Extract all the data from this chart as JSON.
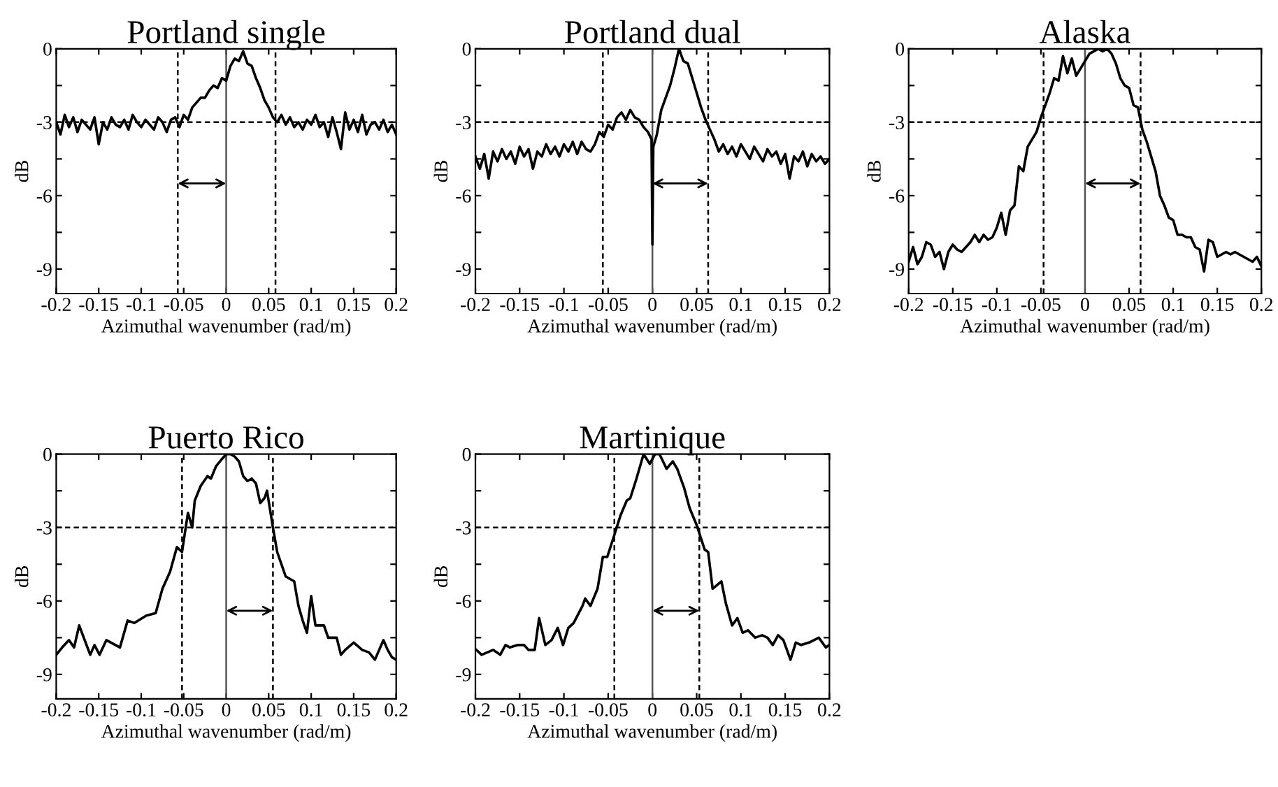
{
  "chart_data": [
    {
      "type": "line",
      "title": "Portland single",
      "xlabel": "Azimuthal wavenumber (rad/m)",
      "ylabel": "dB",
      "color": "#000000",
      "grid": false,
      "legend": false,
      "x": [
        -0.2,
        -0.195,
        -0.19,
        -0.185,
        -0.18,
        -0.175,
        -0.17,
        -0.165,
        -0.16,
        -0.155,
        -0.15,
        -0.145,
        -0.14,
        -0.135,
        -0.13,
        -0.125,
        -0.12,
        -0.115,
        -0.11,
        -0.105,
        -0.1,
        -0.095,
        -0.09,
        -0.085,
        -0.08,
        -0.075,
        -0.07,
        -0.065,
        -0.06,
        -0.055,
        -0.05,
        -0.045,
        -0.04,
        -0.035,
        -0.03,
        -0.025,
        -0.02,
        -0.015,
        -0.01,
        -0.005,
        0,
        0.005,
        0.01,
        0.015,
        0.02,
        0.025,
        0.03,
        0.035,
        0.04,
        0.045,
        0.05,
        0.055,
        0.06,
        0.065,
        0.07,
        0.075,
        0.08,
        0.085,
        0.09,
        0.095,
        0.1,
        0.105,
        0.11,
        0.115,
        0.12,
        0.125,
        0.13,
        0.135,
        0.14,
        0.145,
        0.15,
        0.155,
        0.16,
        0.165,
        0.17,
        0.175,
        0.18,
        0.185,
        0.19,
        0.195,
        0.2
      ],
      "values": [
        -3.0,
        -3.5,
        -2.7,
        -3.2,
        -2.8,
        -3.4,
        -2.9,
        -3.1,
        -3.3,
        -2.8,
        -3.9,
        -3.0,
        -3.3,
        -2.8,
        -3.1,
        -3.2,
        -2.9,
        -3.3,
        -2.7,
        -3.0,
        -3.2,
        -2.9,
        -3.1,
        -3.3,
        -2.8,
        -3.0,
        -3.4,
        -2.9,
        -2.8,
        -3.2,
        -2.7,
        -2.9,
        -2.4,
        -2.2,
        -2.0,
        -2.0,
        -1.7,
        -1.5,
        -1.6,
        -1.2,
        -1.3,
        -0.7,
        -0.4,
        -0.5,
        -0.1,
        -0.6,
        -0.7,
        -1.2,
        -1.6,
        -2.1,
        -2.4,
        -2.8,
        -3.0,
        -2.7,
        -3.1,
        -2.8,
        -3.2,
        -3.0,
        -3.3,
        -2.9,
        -3.1,
        -2.7,
        -3.2,
        -3.0,
        -3.6,
        -2.8,
        -3.4,
        -4.1,
        -2.6,
        -3.3,
        -2.9,
        -3.4,
        -2.7,
        -3.5,
        -3.1,
        -3.0,
        -3.3,
        -2.9,
        -3.4,
        -3.1,
        -3.5
      ],
      "xlim": [
        -0.2,
        0.2
      ],
      "xticks": [
        -0.2,
        -0.15,
        -0.1,
        -0.05,
        0,
        0.05,
        0.1,
        0.15,
        0.2
      ],
      "ylim": [
        -10,
        0
      ],
      "yticks": [
        0,
        {
          "value": -1.5,
          "label": null
        },
        -3,
        {
          "value": -4.5,
          "label": null
        },
        -6,
        {
          "value": -7.5,
          "label": null
        },
        -9
      ],
      "ref_lines": [
        {
          "axis": "x",
          "value": 0,
          "line_style": "solid",
          "color": "#555555"
        },
        {
          "axis": "x",
          "value": -0.057,
          "line_style": "dashed",
          "color": "#000000"
        },
        {
          "axis": "x",
          "value": 0.058,
          "line_style": "dashed",
          "color": "#000000"
        },
        {
          "axis": "y",
          "value": -3,
          "line_style": "dashed",
          "color": "#000000"
        }
      ]
    },
    {
      "type": "line",
      "title": "Portland dual",
      "xlabel": "Azimuthal wavenumber (rad/m)",
      "ylabel": "dB",
      "color": "#000000",
      "grid": false,
      "legend": false,
      "x": [
        -0.2,
        -0.195,
        -0.19,
        -0.185,
        -0.18,
        -0.175,
        -0.17,
        -0.165,
        -0.16,
        -0.155,
        -0.15,
        -0.145,
        -0.14,
        -0.135,
        -0.13,
        -0.125,
        -0.12,
        -0.115,
        -0.11,
        -0.105,
        -0.1,
        -0.095,
        -0.09,
        -0.085,
        -0.08,
        -0.075,
        -0.07,
        -0.065,
        -0.06,
        -0.055,
        -0.05,
        -0.045,
        -0.04,
        -0.035,
        -0.03,
        -0.025,
        -0.02,
        -0.015,
        -0.01,
        -0.005,
        -0.001,
        0,
        0.001,
        0.005,
        0.01,
        0.015,
        0.02,
        0.025,
        0.03,
        0.035,
        0.04,
        0.045,
        0.05,
        0.055,
        0.06,
        0.065,
        0.07,
        0.075,
        0.08,
        0.085,
        0.09,
        0.095,
        0.1,
        0.105,
        0.11,
        0.115,
        0.12,
        0.125,
        0.13,
        0.135,
        0.14,
        0.145,
        0.15,
        0.155,
        0.16,
        0.165,
        0.17,
        0.175,
        0.18,
        0.185,
        0.19,
        0.195,
        0.2
      ],
      "values": [
        -4.4,
        -4.9,
        -4.3,
        -5.3,
        -4.2,
        -4.6,
        -4.1,
        -4.5,
        -4.2,
        -4.7,
        -4.0,
        -4.4,
        -4.1,
        -4.9,
        -4.2,
        -4.4,
        -3.9,
        -4.3,
        -4.0,
        -4.4,
        -3.9,
        -4.2,
        -3.8,
        -4.3,
        -3.8,
        -4.1,
        -4.2,
        -3.9,
        -3.4,
        -3.6,
        -3.1,
        -3.3,
        -2.8,
        -2.6,
        -2.9,
        -2.5,
        -2.8,
        -2.9,
        -3.2,
        -3.4,
        -3.7,
        -8.0,
        -4.0,
        -3.5,
        -2.5,
        -2.0,
        -1.5,
        -0.8,
        0.0,
        -0.5,
        -0.6,
        -1.2,
        -1.8,
        -2.4,
        -2.9,
        -3.3,
        -3.7,
        -4.2,
        -3.9,
        -4.3,
        -4.0,
        -4.4,
        -3.9,
        -4.2,
        -4.5,
        -4.0,
        -4.3,
        -4.6,
        -4.1,
        -4.4,
        -4.2,
        -4.7,
        -4.3,
        -5.3,
        -4.4,
        -4.6,
        -4.2,
        -4.8,
        -4.3,
        -4.6,
        -4.4,
        -4.7,
        -4.5
      ],
      "xlim": [
        -0.2,
        0.2
      ],
      "xticks": [
        -0.2,
        -0.15,
        -0.1,
        -0.05,
        0,
        0.05,
        0.1,
        0.15,
        0.2
      ],
      "ylim": [
        -10,
        0
      ],
      "yticks": [
        0,
        {
          "value": -1.5,
          "label": null
        },
        -3,
        {
          "value": -4.5,
          "label": null
        },
        -6,
        {
          "value": -7.5,
          "label": null
        },
        -9
      ],
      "ref_lines": [
        {
          "axis": "x",
          "value": 0,
          "line_style": "solid",
          "color": "#555555"
        },
        {
          "axis": "x",
          "value": 0.063,
          "line_style": "dashed",
          "color": "#000000"
        },
        {
          "axis": "x",
          "value": -0.056,
          "line_style": "dashed",
          "color": "#000000"
        },
        {
          "axis": "y",
          "value": -3,
          "line_style": "dashed",
          "color": "#000000"
        }
      ]
    },
    {
      "type": "line",
      "title": "Alaska",
      "xlabel": "Azimuthal wavenumber (rad/m)",
      "ylabel": "dB",
      "color": "#000000",
      "grid": false,
      "legend": false,
      "x": [
        -0.2,
        -0.195,
        -0.19,
        -0.185,
        -0.18,
        -0.175,
        -0.17,
        -0.165,
        -0.16,
        -0.155,
        -0.15,
        -0.145,
        -0.14,
        -0.135,
        -0.13,
        -0.125,
        -0.12,
        -0.115,
        -0.11,
        -0.105,
        -0.1,
        -0.095,
        -0.09,
        -0.085,
        -0.08,
        -0.075,
        -0.07,
        -0.065,
        -0.06,
        -0.055,
        -0.05,
        -0.045,
        -0.04,
        -0.035,
        -0.03,
        -0.025,
        -0.02,
        -0.015,
        -0.01,
        -0.005,
        0,
        0.005,
        0.01,
        0.015,
        0.02,
        0.025,
        0.03,
        0.035,
        0.04,
        0.045,
        0.05,
        0.055,
        0.06,
        0.065,
        0.07,
        0.075,
        0.08,
        0.085,
        0.09,
        0.095,
        0.1,
        0.105,
        0.11,
        0.115,
        0.12,
        0.125,
        0.13,
        0.135,
        0.14,
        0.145,
        0.15,
        0.155,
        0.16,
        0.165,
        0.17,
        0.175,
        0.18,
        0.185,
        0.19,
        0.195,
        0.2
      ],
      "values": [
        -8.7,
        -8.1,
        -8.8,
        -8.5,
        -7.9,
        -8.0,
        -8.5,
        -8.3,
        -9.0,
        -8.3,
        -8.0,
        -8.2,
        -8.3,
        -8.1,
        -7.9,
        -7.6,
        -7.9,
        -7.6,
        -7.8,
        -7.7,
        -7.3,
        -6.7,
        -7.6,
        -6.6,
        -6.4,
        -4.8,
        -5.0,
        -4.0,
        -3.7,
        -3.4,
        -2.8,
        -2.3,
        -1.8,
        -1.2,
        -1.3,
        -0.3,
        -1.0,
        -0.4,
        -1.1,
        -0.8,
        -0.5,
        -0.2,
        -0.1,
        0.0,
        -0.1,
        0.0,
        -0.2,
        -0.6,
        -1.2,
        -1.5,
        -1.6,
        -2.3,
        -2.4,
        -3.3,
        -3.8,
        -4.4,
        -5.0,
        -6.0,
        -6.4,
        -6.9,
        -7.0,
        -7.6,
        -7.6,
        -7.7,
        -7.7,
        -8.1,
        -8.2,
        -9.1,
        -7.8,
        -7.9,
        -8.5,
        -8.4,
        -8.3,
        -8.4,
        -8.3,
        -8.4,
        -8.5,
        -8.6,
        -8.7,
        -8.5,
        -8.9
      ],
      "xlim": [
        -0.2,
        0.2
      ],
      "xticks": [
        -0.2,
        -0.15,
        -0.1,
        -0.05,
        0,
        0.05,
        0.1,
        0.15,
        0.2
      ],
      "ylim": [
        -10,
        0
      ],
      "yticks": [
        0,
        {
          "value": -1.5,
          "label": null
        },
        -3,
        {
          "value": -4.5,
          "label": null
        },
        -6,
        {
          "value": -7.5,
          "label": null
        },
        -9
      ],
      "ref_lines": [
        {
          "axis": "x",
          "value": 0,
          "line_style": "solid",
          "color": "#555555"
        },
        {
          "axis": "x",
          "value": 0.063,
          "line_style": "dashed",
          "color": "#000000"
        },
        {
          "axis": "x",
          "value": -0.047,
          "line_style": "dashed",
          "color": "#000000"
        },
        {
          "axis": "y",
          "value": -3,
          "line_style": "dashed",
          "color": "#000000"
        }
      ]
    },
    {
      "type": "line",
      "title": "Puerto Rico",
      "xlabel": "Azimuthal wavenumber (rad/m)",
      "ylabel": "dB",
      "color": "#000000",
      "grid": false,
      "legend": false,
      "x": [
        -0.2,
        -0.193,
        -0.185,
        -0.179,
        -0.173,
        -0.16,
        -0.155,
        -0.149,
        -0.141,
        -0.125,
        -0.116,
        -0.108,
        -0.094,
        -0.083,
        -0.075,
        -0.066,
        -0.058,
        -0.052,
        -0.045,
        -0.04,
        -0.037,
        -0.03,
        -0.022,
        -0.018,
        -0.012,
        -0.005,
        0,
        0.005,
        0.01,
        0.015,
        0.02,
        0.025,
        0.03,
        0.035,
        0.04,
        0.045,
        0.048,
        0.055,
        0.06,
        0.07,
        0.08,
        0.085,
        0.09,
        0.095,
        0.1,
        0.105,
        0.115,
        0.12,
        0.13,
        0.135,
        0.14,
        0.15,
        0.16,
        0.168,
        0.175,
        0.185,
        0.19,
        0.195,
        0.2
      ],
      "values": [
        -8.2,
        -7.9,
        -7.6,
        -7.9,
        -7.0,
        -8.2,
        -7.8,
        -8.2,
        -7.6,
        -7.9,
        -6.8,
        -6.9,
        -6.6,
        -6.5,
        -5.5,
        -4.8,
        -3.8,
        -4.0,
        -2.4,
        -3.0,
        -1.9,
        -1.3,
        -0.9,
        -1.0,
        -0.5,
        -0.2,
        0.0,
        0.0,
        -0.1,
        -0.3,
        -0.9,
        -1.1,
        -1.0,
        -1.2,
        -2.0,
        -1.8,
        -1.5,
        -3.0,
        -4.0,
        -5.0,
        -5.2,
        -6.2,
        -6.8,
        -7.3,
        -5.8,
        -7.0,
        -7.0,
        -7.5,
        -7.5,
        -8.2,
        -8.0,
        -7.7,
        -8.0,
        -8.1,
        -8.4,
        -7.6,
        -8.0,
        -8.3,
        -8.4
      ],
      "xlim": [
        -0.2,
        0.2
      ],
      "xticks": [
        -0.2,
        -0.15,
        -0.1,
        -0.05,
        0,
        0.05,
        0.1,
        0.15,
        0.2
      ],
      "ylim": [
        -10,
        0
      ],
      "yticks": [
        0,
        {
          "value": -1.5,
          "label": null
        },
        -3,
        {
          "value": -4.5,
          "label": null
        },
        -6,
        {
          "value": -7.5,
          "label": null
        },
        -9
      ],
      "ref_lines": [
        {
          "axis": "x",
          "value": 0,
          "line_style": "solid",
          "color": "#555555"
        },
        {
          "axis": "x",
          "value": 0.055,
          "line_style": "dashed",
          "color": "#000000"
        },
        {
          "axis": "x",
          "value": -0.052,
          "line_style": "dashed",
          "color": "#000000"
        },
        {
          "axis": "y",
          "value": -3,
          "line_style": "dashed",
          "color": "#000000"
        }
      ]
    },
    {
      "type": "line",
      "title": "Martinique",
      "xlabel": "Azimuthal wavenumber (rad/m)",
      "ylabel": "dB",
      "color": "#000000",
      "grid": false,
      "legend": false,
      "x": [
        -0.199,
        -0.193,
        -0.18,
        -0.172,
        -0.166,
        -0.161,
        -0.152,
        -0.145,
        -0.14,
        -0.133,
        -0.128,
        -0.121,
        -0.114,
        -0.107,
        -0.101,
        -0.095,
        -0.089,
        -0.079,
        -0.076,
        -0.07,
        -0.062,
        -0.056,
        -0.051,
        -0.043,
        -0.036,
        -0.029,
        -0.025,
        -0.018,
        -0.01,
        -0.003,
        0.003,
        0.008,
        0.016,
        0.023,
        0.028,
        0.036,
        0.042,
        0.05,
        0.059,
        0.063,
        0.068,
        0.078,
        0.083,
        0.09,
        0.096,
        0.102,
        0.108,
        0.116,
        0.124,
        0.13,
        0.136,
        0.142,
        0.148,
        0.156,
        0.162,
        0.168,
        0.177,
        0.188,
        0.196,
        0.2
      ],
      "values": [
        -8.0,
        -8.2,
        -8.0,
        -8.2,
        -7.8,
        -7.9,
        -7.8,
        -7.8,
        -8.0,
        -8.0,
        -6.7,
        -7.8,
        -7.6,
        -7.1,
        -7.8,
        -7.1,
        -6.9,
        -6.2,
        -5.9,
        -6.2,
        -5.5,
        -4.2,
        -4.2,
        -3.3,
        -2.5,
        -1.9,
        -1.8,
        -1.0,
        0.0,
        -0.4,
        0.0,
        0.0,
        -0.6,
        -0.3,
        -0.6,
        -1.4,
        -2.2,
        -2.9,
        -3.9,
        -4.0,
        -5.5,
        -5.2,
        -6.1,
        -7.0,
        -6.7,
        -7.3,
        -7.2,
        -7.5,
        -7.4,
        -7.5,
        -7.8,
        -7.4,
        -7.6,
        -8.4,
        -7.7,
        -7.8,
        -7.7,
        -7.5,
        -7.9,
        -7.8
      ],
      "xlim": [
        -0.2,
        0.2
      ],
      "xticks": [
        -0.2,
        -0.15,
        -0.1,
        -0.05,
        0,
        0.05,
        0.1,
        0.15,
        0.2
      ],
      "ylim": [
        -10,
        0
      ],
      "yticks": [
        0,
        {
          "value": -1.5,
          "label": null
        },
        -3,
        {
          "value": -4.5,
          "label": null
        },
        -6,
        {
          "value": -7.5,
          "label": null
        },
        -9
      ],
      "ref_lines": [
        {
          "axis": "x",
          "value": 0,
          "line_style": "solid",
          "color": "#555555"
        },
        {
          "axis": "x",
          "value": 0.053,
          "line_style": "dashed",
          "color": "#000000"
        },
        {
          "axis": "x",
          "value": -0.043,
          "line_style": "dashed",
          "color": "#000000"
        },
        {
          "axis": "y",
          "value": -3,
          "line_style": "dashed",
          "color": "#000000"
        }
      ]
    }
  ]
}
